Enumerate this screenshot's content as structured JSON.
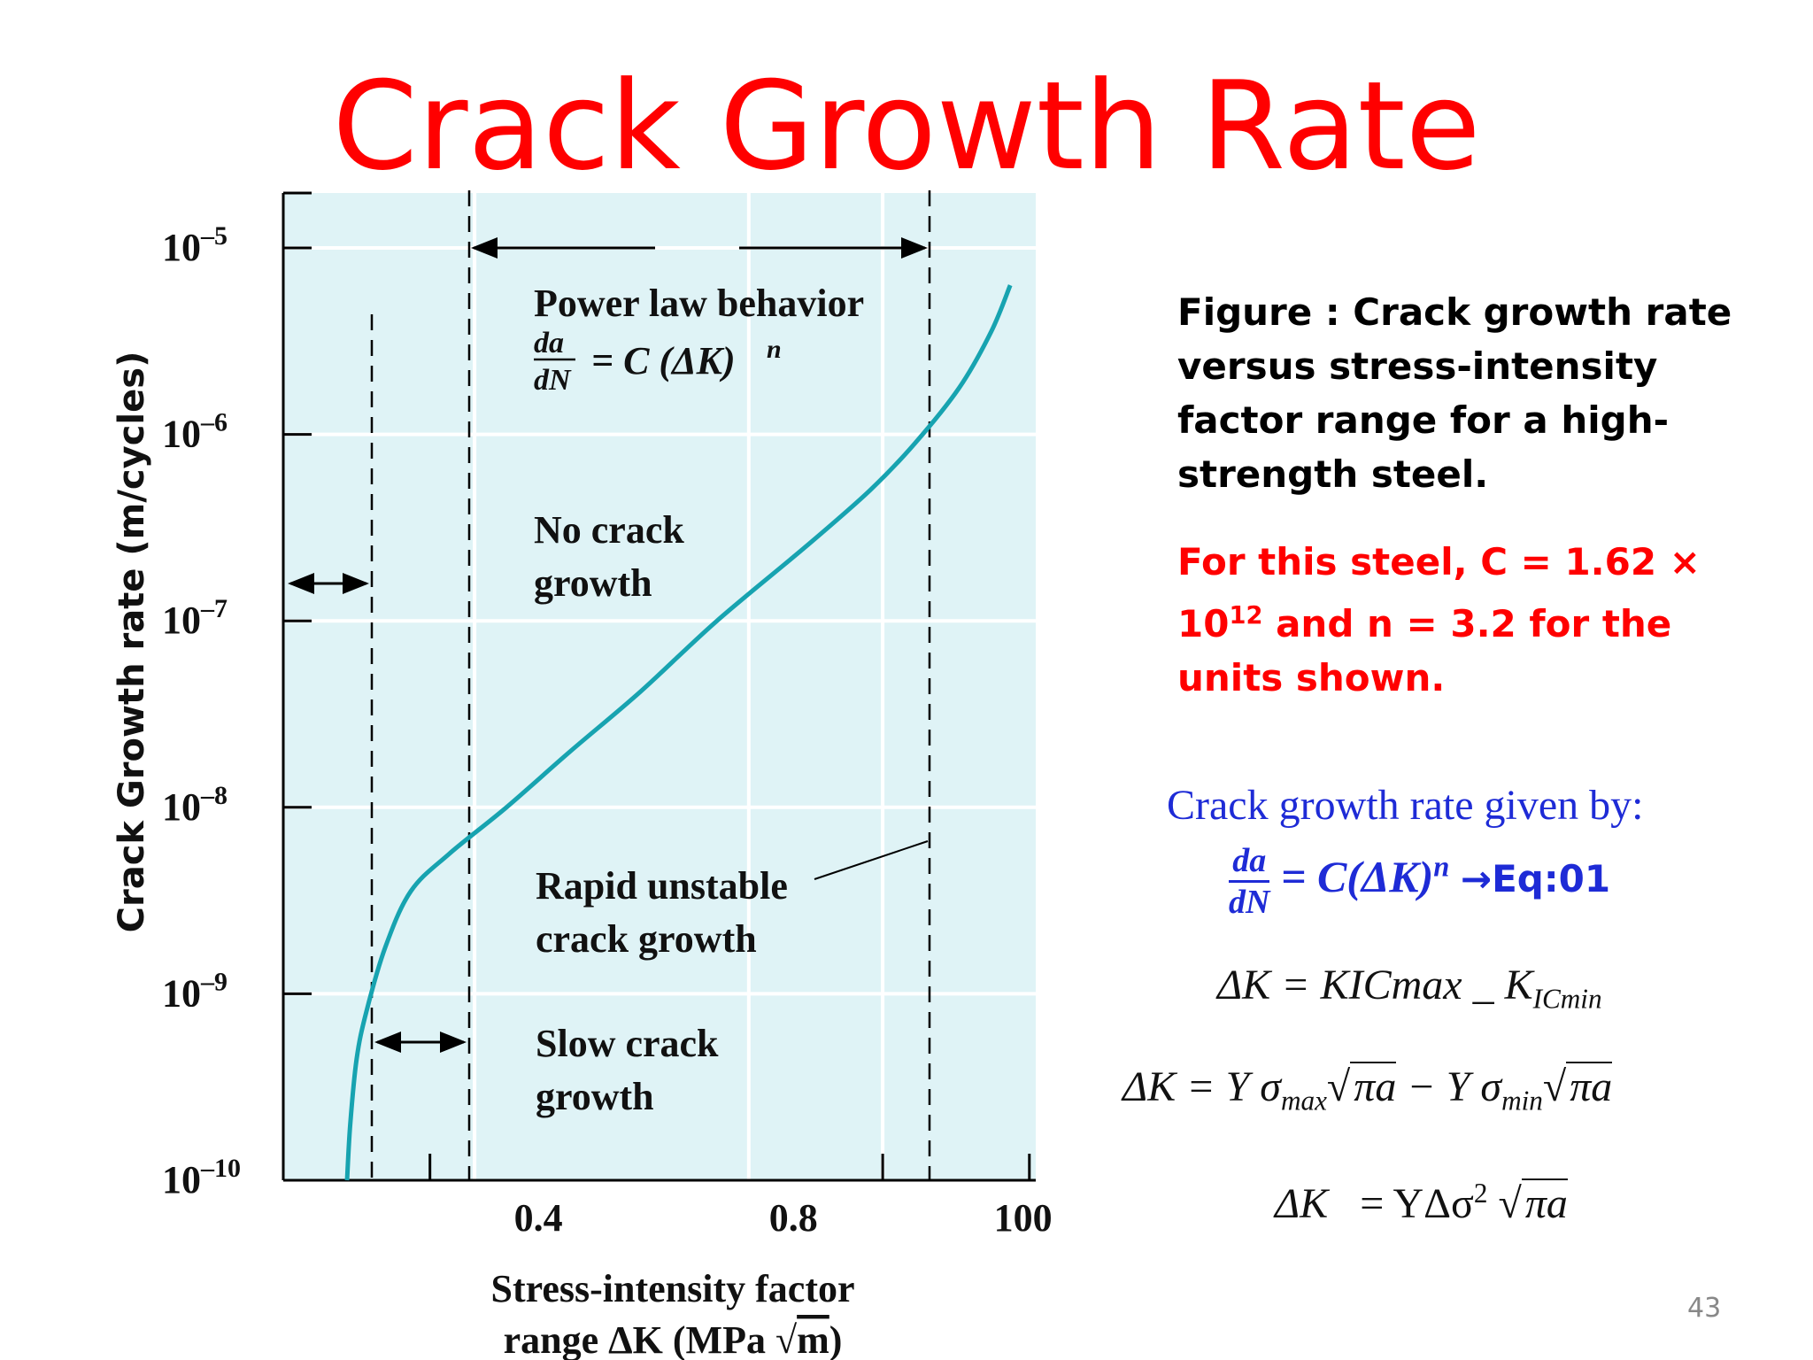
{
  "slide": {
    "title": "Crack Growth Rate",
    "page_number": "43"
  },
  "chart_data": {
    "type": "line",
    "x_tick_labels": [
      "0.4",
      "0.8",
      "100"
    ],
    "y_tick_labels": [
      {
        "base": "10",
        "exp": "–5"
      },
      {
        "base": "10",
        "exp": "–6"
      },
      {
        "base": "10",
        "exp": "–7"
      },
      {
        "base": "10",
        "exp": "–8"
      },
      {
        "base": "10",
        "exp": "–9"
      },
      {
        "base": "10",
        "exp": "–10"
      }
    ],
    "ylabel": "Crack Growth rate (m/cycles)",
    "xlabel_line1": "Stress-intensity factor",
    "xlabel_line2_prefix": "range ΔK (MPa ",
    "xlabel_line2_root": "m",
    "xlabel_line2_suffix": ")",
    "y_scale": "log",
    "ylim_exponents": [
      -10,
      -5
    ],
    "grid": true,
    "background_color": "#dff3f6",
    "curve_color": "#17a3b0",
    "curve": [
      {
        "x": 0.1,
        "log_y": -10.0
      },
      {
        "x": 0.105,
        "log_y": -9.7
      },
      {
        "x": 0.115,
        "log_y": -9.35
      },
      {
        "x": 0.13,
        "log_y": -9.1
      },
      {
        "x": 0.16,
        "log_y": -8.75
      },
      {
        "x": 0.2,
        "log_y": -8.45
      },
      {
        "x": 0.26,
        "log_y": -8.25
      },
      {
        "x": 0.35,
        "log_y": -8.0
      },
      {
        "x": 0.45,
        "log_y": -7.7
      },
      {
        "x": 0.56,
        "log_y": -7.38
      },
      {
        "x": 0.68,
        "log_y": -7.0
      },
      {
        "x": 0.82,
        "log_y": -6.6
      },
      {
        "x": 0.92,
        "log_y": -6.3
      },
      {
        "x": 0.99,
        "log_y": -6.05
      },
      {
        "x": 1.06,
        "log_y": -5.75
      },
      {
        "x": 1.11,
        "log_y": -5.45
      },
      {
        "x": 1.14,
        "log_y": -5.2
      }
    ],
    "annotations": {
      "power_law_title": "Power law behavior",
      "power_law_num": "da",
      "power_law_den": "dN",
      "power_law_rhs": "= C (ΔK)",
      "power_law_exp": "n",
      "no_crack_1": "No crack",
      "no_crack_2": "growth",
      "rapid_1": "Rapid unstable",
      "rapid_2": "crack growth",
      "slow_1": "Slow crack",
      "slow_2": "growth"
    }
  },
  "captions": {
    "figure": "Figure : Crack growth rate versus stress-intensity factor range for a high-strength steel.",
    "steel_note_prefix": "For this steel, C = 1.62 × 10",
    "steel_note_exp": "12",
    "steel_note_suffix": " and n = 3.2 for the units shown."
  },
  "equations": {
    "given_by": "Crack growth rate given by:",
    "eq1_num": "da",
    "eq1_den": "dN",
    "eq1_rhs": "= C(ΔK)",
    "eq1_exp": "n",
    "eq1_tag": "→Eq:01",
    "eq2_lhs": "ΔK = KICmax",
    "eq2_mid": "_",
    "eq2_k": "K",
    "eq2_sub": "ICmin",
    "eq3_lhs": "ΔK = Y σ",
    "eq3_sub1": "max",
    "eq3_root1": "πa",
    "eq3_mid": " − Y σ",
    "eq3_sub2": "min",
    "eq3_root2": "πa",
    "eq4_lhs": "ΔK",
    "eq4_mid": "= YΔσ",
    "eq4_exp": "2",
    "eq4_root": "πa"
  }
}
